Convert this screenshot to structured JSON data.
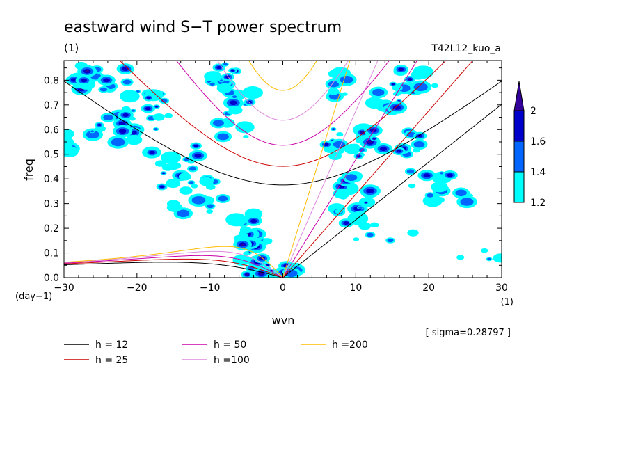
{
  "chart_data": {
    "type": "contour",
    "title": "eastward wind S−T power spectrum",
    "title_units": "(1)",
    "case_label": "T42L12_kuo_a",
    "xlabel": "wvn",
    "x_units": "(1)",
    "ylabel": "freq",
    "y_units": "(day−1)",
    "xlim": [
      -30,
      30
    ],
    "ylim": [
      0,
      0.88
    ],
    "x_ticks": [
      -30,
      -20,
      -10,
      0,
      10,
      20,
      30
    ],
    "x_tick_labels": [
      "−30",
      "−20",
      "−10",
      "0",
      "10",
      "20",
      "30"
    ],
    "y_ticks": [
      0,
      0.1,
      0.2,
      0.3,
      0.4,
      0.5,
      0.6,
      0.7,
      0.8
    ],
    "y_tick_labels": [
      "0.0",
      "0.1",
      "0.2",
      "0.3",
      "0.4",
      "0.5",
      "0.6",
      "0.7",
      "0.8"
    ],
    "sigma_note": "[ sigma=0.28797 ]",
    "colorbar": {
      "levels": [
        1.2,
        1.4,
        1.6,
        2
      ],
      "labels": [
        "1.2",
        "1.4",
        "1.6",
        "2"
      ],
      "colors": [
        "#00ffff",
        "#0066ff",
        "#0000cc",
        "#330099"
      ]
    },
    "series": [
      {
        "name": "h = 12",
        "h": 12,
        "color": "#000000"
      },
      {
        "name": "h = 25",
        "h": 25,
        "color": "#cc0000"
      },
      {
        "name": "h = 50",
        "h": 50,
        "color": "#cc00aa"
      },
      {
        "name": "h =100",
        "h": 100,
        "color": "#dd88dd"
      },
      {
        "name": "h =200",
        "h": 200,
        "color": "#ffbb00"
      }
    ],
    "curve_families": [
      "inertio-gravity n=1 (symmetric parabolas)",
      "kelvin (rays from origin)",
      "rossby (low-frequency westward)"
    ],
    "power_regions": [
      {
        "level": 2,
        "x": -3,
        "y": 0.02
      },
      {
        "level": 2,
        "x": 1,
        "y": 0.03
      },
      {
        "level": 1.6,
        "x": -5,
        "y": 0.22
      },
      {
        "level": 1.6,
        "x": -8,
        "y": 0.82
      },
      {
        "level": 1.6,
        "x": 11,
        "y": 0.55
      },
      {
        "level": 1.6,
        "x": 9,
        "y": 0.34
      },
      {
        "level": 1.6,
        "x": -25,
        "y": 0.81
      },
      {
        "level": 1.6,
        "x": 18,
        "y": 0.78
      }
    ]
  }
}
